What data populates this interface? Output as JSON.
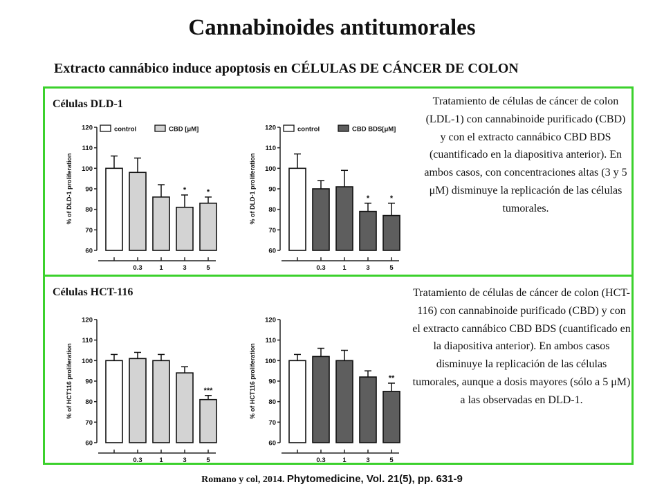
{
  "slide": {
    "title": "Cannabinoides antitumorales",
    "subtitle": "Extracto cannábico induce apoptosis en CÉLULAS DE CÁNCER DE COLON",
    "section1_label": "Células DLD-1",
    "section2_label": "Células HCT-116",
    "description1": "Tratamiento de células de cáncer de colon (LDL-1) con cannabinoide purificado (CBD) y con el extracto cannábico CBD BDS (cuantificado en la diapositiva anterior). En ambos casos, con concentraciones altas (3 y 5 μM) disminuye la replicación de las células tumorales.",
    "description2": "Tratamiento de células de cáncer de colon (HCT-116) con cannabinoide purificado (CBD) y con el extracto cannábico CBD BDS (cuantificado en la diapositiva anterior). En ambos casos disminuye la replicación de las células tumorales, aunque a dosis mayores (sólo a 5 μM) a las observadas en DLD-1.",
    "citation_authors": "Romano y col, 2014.",
    "citation_journal": "Phytomedicine, Vol. 21(5), pp. 631-9"
  },
  "colors": {
    "frame": "#3bd12c",
    "control": "#ffffff",
    "cbd": "#d3d3d3",
    "cbd_bds": "#5e5e5e"
  },
  "chart_data": [
    {
      "type": "bar",
      "ylabel": "% of DLD-1 proliferation",
      "ylim": [
        60,
        120
      ],
      "yticks": [
        "60",
        "70",
        "80",
        "90",
        "100",
        "110",
        "120"
      ],
      "categories": [
        "",
        "0.3",
        "1",
        "3",
        "5"
      ],
      "legend": [
        "control",
        "CBD [μM]"
      ],
      "values": [
        100,
        98,
        86,
        81,
        83
      ],
      "errors": [
        6,
        7,
        6,
        6,
        3
      ],
      "significance": [
        "",
        "",
        "",
        "*",
        "*"
      ],
      "fills": [
        "#ffffff",
        "#d3d3d3",
        "#d3d3d3",
        "#d3d3d3",
        "#d3d3d3"
      ]
    },
    {
      "type": "bar",
      "ylabel": "% of DLD-1 proliferation",
      "ylim": [
        60,
        120
      ],
      "yticks": [
        "60",
        "70",
        "80",
        "90",
        "100",
        "110",
        "120"
      ],
      "categories": [
        "",
        "0.3",
        "1",
        "3",
        "5"
      ],
      "legend": [
        "control",
        "CBD BDS[μM]"
      ],
      "values": [
        100,
        90,
        91,
        79,
        77
      ],
      "errors": [
        7,
        4,
        8,
        4,
        6
      ],
      "significance": [
        "",
        "",
        "",
        "*",
        "*"
      ],
      "fills": [
        "#ffffff",
        "#5e5e5e",
        "#5e5e5e",
        "#5e5e5e",
        "#5e5e5e"
      ]
    },
    {
      "type": "bar",
      "ylabel": "% of HCT116 proliferation",
      "ylim": [
        60,
        120
      ],
      "yticks": [
        "60",
        "70",
        "80",
        "90",
        "100",
        "110",
        "120"
      ],
      "categories": [
        "",
        "0.3",
        "1",
        "3",
        "5"
      ],
      "legend": [],
      "values": [
        100,
        101,
        100,
        94,
        81
      ],
      "errors": [
        3,
        3,
        3,
        3,
        2
      ],
      "significance": [
        "",
        "",
        "",
        "",
        "***"
      ],
      "fills": [
        "#ffffff",
        "#d3d3d3",
        "#d3d3d3",
        "#d3d3d3",
        "#d3d3d3"
      ]
    },
    {
      "type": "bar",
      "ylabel": "% of HCT116 proliferation",
      "ylim": [
        60,
        120
      ],
      "yticks": [
        "60",
        "70",
        "80",
        "90",
        "100",
        "110",
        "120"
      ],
      "categories": [
        "",
        "0.3",
        "1",
        "3",
        "5"
      ],
      "legend": [],
      "values": [
        100,
        102,
        100,
        92,
        85
      ],
      "errors": [
        3,
        4,
        5,
        3,
        4
      ],
      "significance": [
        "",
        "",
        "",
        "",
        "**"
      ],
      "fills": [
        "#ffffff",
        "#5e5e5e",
        "#5e5e5e",
        "#5e5e5e",
        "#5e5e5e"
      ]
    }
  ]
}
